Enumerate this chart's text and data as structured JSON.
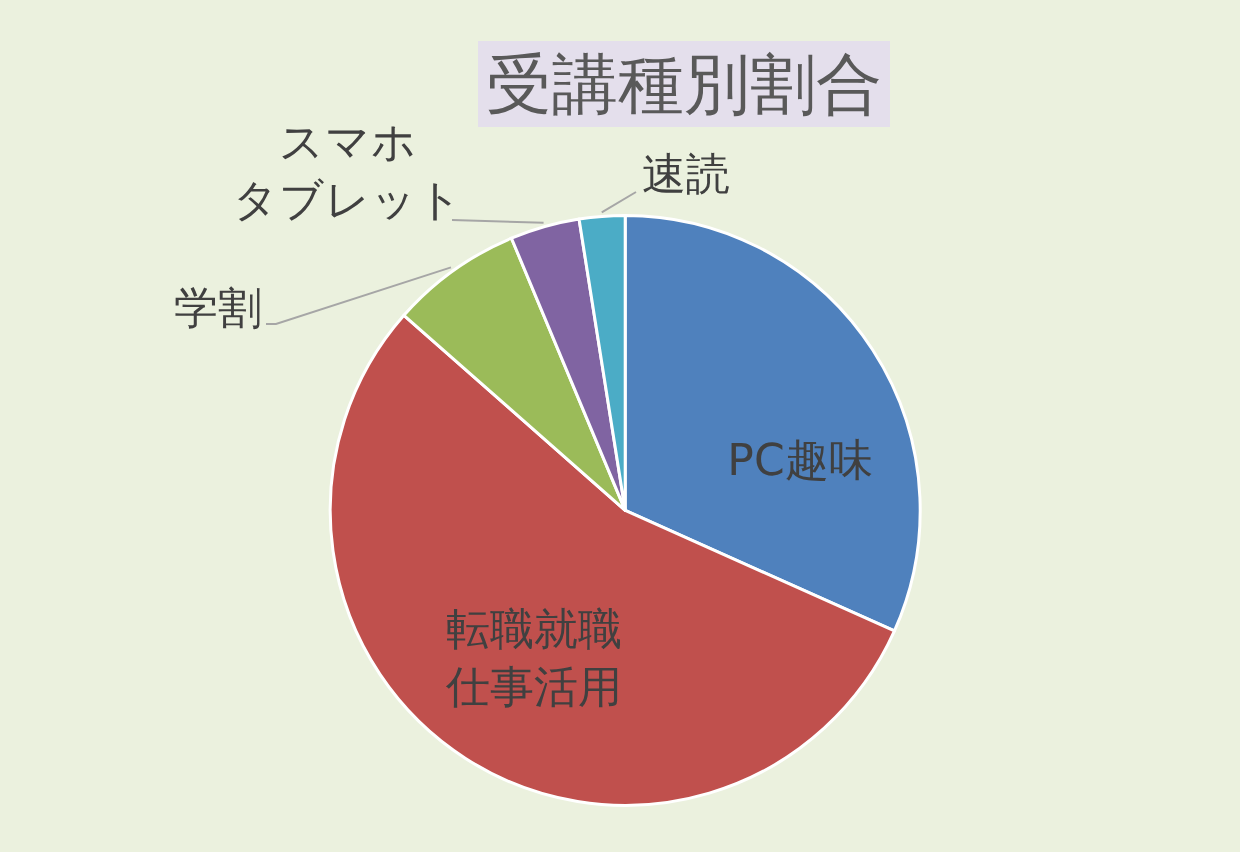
{
  "chart_data": {
    "type": "pie",
    "title": "受講種別割合",
    "categories": [
      "PC趣味",
      "転職就職仕事活用",
      "学割",
      "スマホタブレット",
      "速読"
    ],
    "values": [
      31.7,
      54.8,
      7.2,
      3.8,
      2.5
    ],
    "colors": [
      "#4f81bd",
      "#c0504d",
      "#9bbb59",
      "#8064a2",
      "#4bacc6"
    ]
  }
}
